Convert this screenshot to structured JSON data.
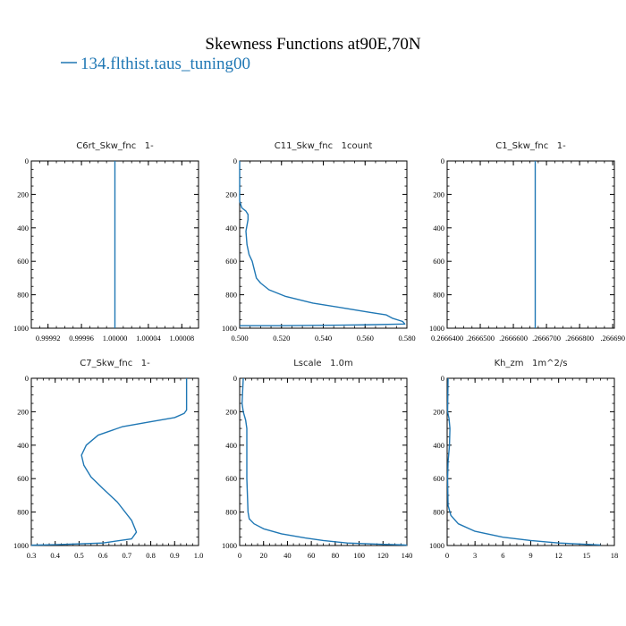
{
  "figure": {
    "title": "Skewness Functions at90E,70N",
    "legend": [
      {
        "label": "134.flthist.taus_tuning00",
        "color": "#1f77b4"
      }
    ]
  },
  "colors": {
    "series": "#1f77b4",
    "axis": "#000000"
  },
  "chart_data": [
    {
      "type": "line",
      "title": "C6rt_Skw_fnc   1-",
      "xlim": [
        0.9999,
        1.0001
      ],
      "ylim": [
        1000,
        0
      ],
      "xticks": [
        0.99992,
        0.99996,
        1.0,
        1.00004,
        1.00008
      ],
      "xtick_labels": [
        "0.99992",
        "0.99996",
        "1.00000",
        "1.00004",
        "1.00008"
      ],
      "yticks": [
        0,
        200,
        400,
        600,
        800,
        1000
      ],
      "ytick_labels": [
        "0",
        "200",
        "400",
        "600",
        "800",
        "1000"
      ],
      "series": [
        {
          "x": [
            1.0,
            1.0
          ],
          "y": [
            0,
            1000
          ]
        }
      ]
    },
    {
      "type": "line",
      "title": "C11_Skw_fnc   1count",
      "xlim": [
        0.5,
        0.58
      ],
      "ylim": [
        1000,
        0
      ],
      "xticks": [
        0.5,
        0.52,
        0.54,
        0.56,
        0.58
      ],
      "xtick_labels": [
        "0.500",
        "0.520",
        "0.540",
        "0.560",
        "0.580"
      ],
      "yticks": [
        0,
        200,
        400,
        600,
        800,
        1000
      ],
      "ytick_labels": [
        "0",
        "200",
        "400",
        "600",
        "800",
        "1000"
      ],
      "series": [
        {
          "x": [
            0.5,
            0.5,
            0.501,
            0.503,
            0.504,
            0.504,
            0.503,
            0.5035,
            0.5045,
            0.506,
            0.507,
            0.508,
            0.51,
            0.514,
            0.522,
            0.535,
            0.55,
            0.562,
            0.57,
            0.573,
            0.578,
            0.579,
            0.56,
            0.52,
            0.5
          ],
          "y": [
            0,
            240,
            280,
            300,
            320,
            350,
            420,
            500,
            560,
            600,
            650,
            700,
            730,
            770,
            810,
            850,
            880,
            905,
            920,
            940,
            960,
            975,
            980,
            985,
            985
          ]
        }
      ]
    },
    {
      "type": "line",
      "title": "C1_Skw_fnc   1-",
      "xlim": [
        0.26664,
        0.2666905
      ],
      "ylim": [
        1000,
        0
      ],
      "xticks": [
        0.26664,
        0.26665,
        0.26666,
        0.26667,
        0.26668,
        0.26669
      ],
      "xtick_labels": [
        "0.2666400",
        ".2666500",
        ".2666600",
        ".2666700",
        ".2666800",
        ".266690"
      ],
      "yticks": [
        0,
        200,
        400,
        600,
        800,
        1000
      ],
      "ytick_labels": [
        "0",
        "200",
        "400",
        "600",
        "800",
        "1000"
      ],
      "series": [
        {
          "x": [
            0.2666666,
            0.2666666
          ],
          "y": [
            0,
            1000
          ]
        }
      ]
    },
    {
      "type": "line",
      "title": "C7_Skw_fnc   1-",
      "xlim": [
        0.3,
        1.0
      ],
      "ylim": [
        1000,
        0
      ],
      "xticks": [
        0.3,
        0.4,
        0.5,
        0.6,
        0.7,
        0.8,
        0.9,
        1.0
      ],
      "xtick_labels": [
        "0.3",
        "0.4",
        "0.5",
        "0.6",
        "0.7",
        "0.8",
        "0.9",
        "1.0"
      ],
      "yticks": [
        0,
        200,
        400,
        600,
        800,
        1000
      ],
      "ytick_labels": [
        "0",
        "200",
        "400",
        "600",
        "800",
        "1000"
      ],
      "series": [
        {
          "x": [
            0.95,
            0.95,
            0.94,
            0.9,
            0.8,
            0.68,
            0.58,
            0.53,
            0.51,
            0.52,
            0.55,
            0.6,
            0.66,
            0.72,
            0.74,
            0.72,
            0.6,
            0.4,
            0.3
          ],
          "y": [
            0,
            190,
            210,
            235,
            260,
            290,
            340,
            400,
            460,
            520,
            590,
            660,
            740,
            850,
            920,
            960,
            985,
            995,
            998
          ]
        }
      ]
    },
    {
      "type": "line",
      "title": "Lscale   1.0m",
      "xlim": [
        0,
        140
      ],
      "ylim": [
        1000,
        0
      ],
      "xticks": [
        0,
        20,
        40,
        60,
        80,
        100,
        120,
        140
      ],
      "xtick_labels": [
        "0",
        "20",
        "40",
        "60",
        "80",
        "100",
        "120",
        "140"
      ],
      "yticks": [
        0,
        200,
        400,
        600,
        800,
        1000
      ],
      "ytick_labels": [
        "0",
        "200",
        "400",
        "600",
        "800",
        "1000"
      ],
      "series": [
        {
          "x": [
            3,
            2,
            3,
            5,
            6,
            6,
            6,
            7,
            8,
            12,
            20,
            35,
            55,
            70,
            90,
            120,
            135,
            140
          ],
          "y": [
            0,
            150,
            200,
            250,
            300,
            400,
            600,
            800,
            840,
            870,
            900,
            930,
            955,
            970,
            985,
            993,
            996,
            998
          ]
        }
      ]
    },
    {
      "type": "line",
      "title": "Kh_zm   1m^2/s",
      "xlim": [
        0,
        18
      ],
      "ylim": [
        1000,
        0
      ],
      "xticks": [
        0,
        3,
        6,
        9,
        12,
        15,
        18
      ],
      "xtick_labels": [
        "0",
        "3",
        "6",
        "9",
        "12",
        "15",
        "18"
      ],
      "yticks": [
        0,
        200,
        400,
        600,
        800,
        1000
      ],
      "ytick_labels": [
        "0",
        "200",
        "400",
        "600",
        "800",
        "1000"
      ],
      "series": [
        {
          "x": [
            0.1,
            0.05,
            0.2,
            0.3,
            0.25,
            0.1,
            0.05,
            0.1,
            0.4,
            1.2,
            3,
            6,
            9,
            12,
            15,
            16.5
          ],
          "y": [
            0,
            200,
            240,
            300,
            400,
            500,
            600,
            760,
            820,
            870,
            915,
            950,
            970,
            985,
            993,
            997
          ]
        }
      ]
    }
  ]
}
